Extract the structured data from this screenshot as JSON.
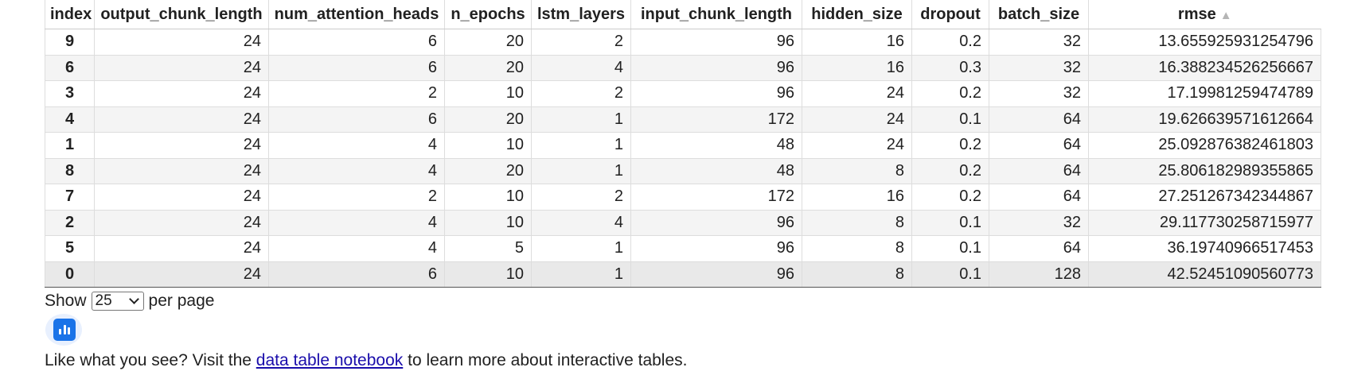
{
  "table": {
    "columns": [
      "index",
      "output_chunk_length",
      "num_attention_heads",
      "n_epochs",
      "lstm_layers",
      "input_chunk_length",
      "hidden_size",
      "dropout",
      "batch_size",
      "rmse"
    ],
    "sort_indicator": "▲",
    "rows": [
      [
        "9",
        "24",
        "6",
        "20",
        "2",
        "96",
        "16",
        "0.2",
        "32",
        "13.655925931254796"
      ],
      [
        "6",
        "24",
        "6",
        "20",
        "4",
        "96",
        "16",
        "0.3",
        "32",
        "16.388234526256667"
      ],
      [
        "3",
        "24",
        "2",
        "10",
        "2",
        "96",
        "24",
        "0.2",
        "32",
        "17.19981259474789"
      ],
      [
        "4",
        "24",
        "6",
        "20",
        "1",
        "172",
        "24",
        "0.1",
        "64",
        "19.626639571612664"
      ],
      [
        "1",
        "24",
        "4",
        "10",
        "1",
        "48",
        "24",
        "0.2",
        "64",
        "25.092876382461803"
      ],
      [
        "8",
        "24",
        "4",
        "20",
        "1",
        "48",
        "8",
        "0.2",
        "64",
        "25.806182989355865"
      ],
      [
        "7",
        "24",
        "2",
        "10",
        "2",
        "172",
        "16",
        "0.2",
        "64",
        "27.251267342344867"
      ],
      [
        "2",
        "24",
        "4",
        "10",
        "4",
        "96",
        "8",
        "0.1",
        "32",
        "29.117730258715977"
      ],
      [
        "5",
        "24",
        "4",
        "5",
        "1",
        "96",
        "8",
        "0.1",
        "64",
        "36.19740966517453"
      ],
      [
        "0",
        "24",
        "6",
        "10",
        "1",
        "96",
        "8",
        "0.1",
        "128",
        "42.52451090560773"
      ]
    ]
  },
  "pager": {
    "show_label": "Show",
    "per_page_value": "25",
    "per_page_label": "per page"
  },
  "chart_button": {
    "icon": "bar-chart-icon",
    "color": "#1a73e8"
  },
  "footer": {
    "text_before": "Like what you see? Visit the ",
    "link_text": "data table notebook",
    "text_after": " to learn more about interactive tables."
  }
}
